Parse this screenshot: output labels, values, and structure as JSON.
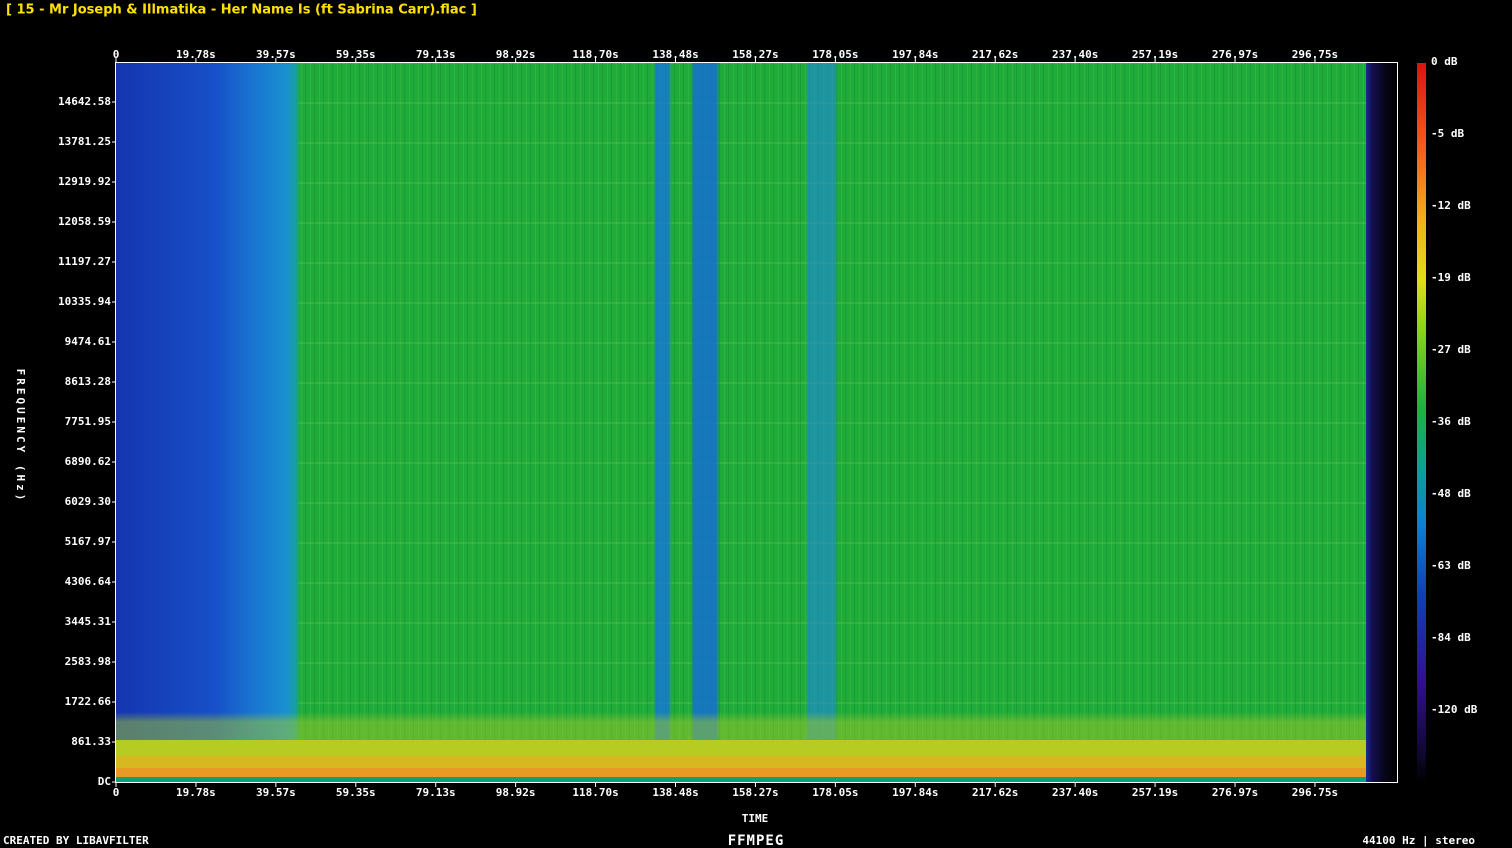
{
  "title": "[ 15 - Mr Joseph & Illmatika - Her Name Is (ft Sabrina Carr).flac ]",
  "time_axis": {
    "label": "TIME",
    "ticks": [
      "0",
      "19.78s",
      "39.57s",
      "59.35s",
      "79.13s",
      "98.92s",
      "118.70s",
      "138.48s",
      "158.27s",
      "178.05s",
      "197.84s",
      "217.62s",
      "237.40s",
      "257.19s",
      "276.97s",
      "296.75s"
    ]
  },
  "frequency_axis": {
    "label": "FREQUENCY (Hz)",
    "ticks": [
      "14642.58",
      "13781.25",
      "12919.92",
      "12058.59",
      "11197.27",
      "10335.94",
      "9474.61",
      "8613.28",
      "7751.95",
      "6890.62",
      "6029.30",
      "5167.97",
      "4306.64",
      "3445.31",
      "2583.98",
      "1722.66",
      "861.33",
      "DC"
    ]
  },
  "colorbar": {
    "ticks": [
      "0 dB",
      "-5 dB",
      "-12 dB",
      "-19 dB",
      "-27 dB",
      "-36 dB",
      "-48 dB",
      "-63 dB",
      "-84 dB",
      "-120 dB"
    ]
  },
  "footer": {
    "left": "CREATED BY LIBAVFILTER",
    "center": "FFMPEG",
    "right": "44100 Hz | stereo"
  }
}
